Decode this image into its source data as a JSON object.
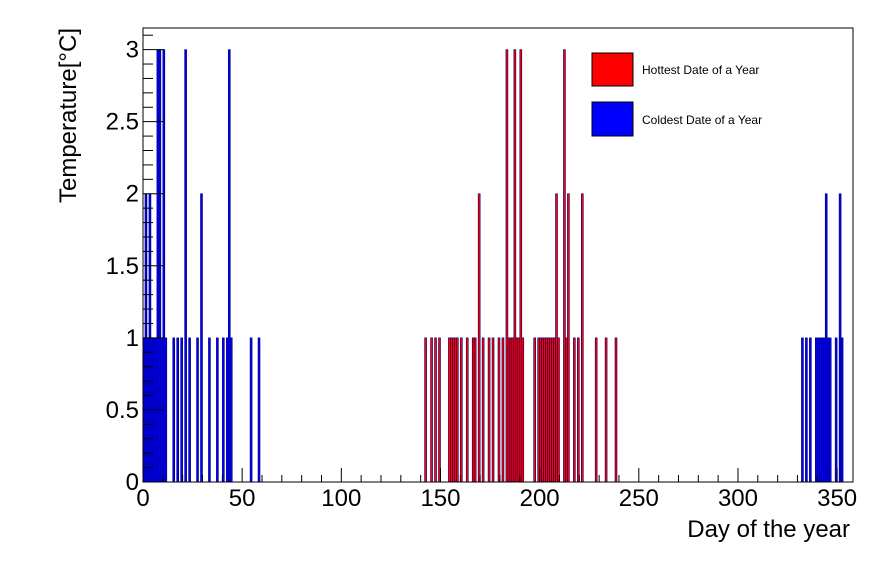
{
  "chart_data": {
    "type": "bar",
    "xlabel": "Day of the year",
    "ylabel": "Temperature[°C]",
    "xlim": [
      0,
      358
    ],
    "ylim": [
      0,
      3.15
    ],
    "x_ticks": [
      "0",
      "50",
      "100",
      "150",
      "200",
      "250",
      "300",
      "350"
    ],
    "y_ticks": [
      "0",
      "0.5",
      "1",
      "1.5",
      "2",
      "2.5",
      "3"
    ],
    "legend_placement": "top-right",
    "series": [
      {
        "name": "Hottest Date of a Year",
        "color": "#ff0000",
        "points": [
          {
            "x": 142,
            "y": 1
          },
          {
            "x": 145,
            "y": 1
          },
          {
            "x": 147,
            "y": 1
          },
          {
            "x": 149,
            "y": 1
          },
          {
            "x": 154,
            "y": 1
          },
          {
            "x": 155,
            "y": 1
          },
          {
            "x": 156,
            "y": 1
          },
          {
            "x": 157,
            "y": 1
          },
          {
            "x": 158,
            "y": 1
          },
          {
            "x": 160,
            "y": 1
          },
          {
            "x": 163,
            "y": 1
          },
          {
            "x": 166,
            "y": 1
          },
          {
            "x": 167,
            "y": 1
          },
          {
            "x": 169,
            "y": 2
          },
          {
            "x": 171,
            "y": 1
          },
          {
            "x": 174,
            "y": 1
          },
          {
            "x": 176,
            "y": 1
          },
          {
            "x": 179,
            "y": 1
          },
          {
            "x": 181,
            "y": 1
          },
          {
            "x": 183,
            "y": 3
          },
          {
            "x": 184,
            "y": 1
          },
          {
            "x": 185,
            "y": 1
          },
          {
            "x": 186,
            "y": 1
          },
          {
            "x": 187,
            "y": 3
          },
          {
            "x": 188,
            "y": 1
          },
          {
            "x": 189,
            "y": 1
          },
          {
            "x": 190,
            "y": 3
          },
          {
            "x": 191,
            "y": 1
          },
          {
            "x": 197,
            "y": 1
          },
          {
            "x": 199,
            "y": 1
          },
          {
            "x": 200,
            "y": 1
          },
          {
            "x": 201,
            "y": 1
          },
          {
            "x": 202,
            "y": 1
          },
          {
            "x": 203,
            "y": 1
          },
          {
            "x": 204,
            "y": 1
          },
          {
            "x": 205,
            "y": 1
          },
          {
            "x": 206,
            "y": 1
          },
          {
            "x": 207,
            "y": 1
          },
          {
            "x": 208,
            "y": 2
          },
          {
            "x": 209,
            "y": 1
          },
          {
            "x": 212,
            "y": 3
          },
          {
            "x": 213,
            "y": 1
          },
          {
            "x": 214,
            "y": 2
          },
          {
            "x": 217,
            "y": 1
          },
          {
            "x": 219,
            "y": 1
          },
          {
            "x": 221,
            "y": 2
          },
          {
            "x": 228,
            "y": 1
          },
          {
            "x": 233,
            "y": 1
          },
          {
            "x": 238,
            "y": 1
          }
        ]
      },
      {
        "name": "Coldest Date of a Year",
        "color": "#0000ff",
        "points": [
          {
            "x": 0,
            "y": 1
          },
          {
            "x": 1,
            "y": 2
          },
          {
            "x": 2,
            "y": 1
          },
          {
            "x": 3,
            "y": 2
          },
          {
            "x": 4,
            "y": 1
          },
          {
            "x": 5,
            "y": 1
          },
          {
            "x": 6,
            "y": 1
          },
          {
            "x": 7,
            "y": 3
          },
          {
            "x": 8,
            "y": 3
          },
          {
            "x": 9,
            "y": 1
          },
          {
            "x": 10,
            "y": 3
          },
          {
            "x": 11,
            "y": 1
          },
          {
            "x": 15,
            "y": 1
          },
          {
            "x": 17,
            "y": 1
          },
          {
            "x": 19,
            "y": 1
          },
          {
            "x": 21,
            "y": 3
          },
          {
            "x": 23,
            "y": 1
          },
          {
            "x": 27,
            "y": 1
          },
          {
            "x": 29,
            "y": 2
          },
          {
            "x": 33,
            "y": 1
          },
          {
            "x": 37,
            "y": 1
          },
          {
            "x": 40,
            "y": 1
          },
          {
            "x": 42,
            "y": 1
          },
          {
            "x": 43,
            "y": 3
          },
          {
            "x": 44,
            "y": 1
          },
          {
            "x": 54,
            "y": 1
          },
          {
            "x": 58,
            "y": 1
          },
          {
            "x": 332,
            "y": 1
          },
          {
            "x": 334,
            "y": 1
          },
          {
            "x": 336,
            "y": 1
          },
          {
            "x": 339,
            "y": 1
          },
          {
            "x": 340,
            "y": 1
          },
          {
            "x": 341,
            "y": 1
          },
          {
            "x": 342,
            "y": 1
          },
          {
            "x": 343,
            "y": 1
          },
          {
            "x": 344,
            "y": 2
          },
          {
            "x": 345,
            "y": 1
          },
          {
            "x": 346,
            "y": 1
          },
          {
            "x": 349,
            "y": 1
          },
          {
            "x": 351,
            "y": 2
          },
          {
            "x": 352,
            "y": 1
          }
        ]
      }
    ]
  }
}
